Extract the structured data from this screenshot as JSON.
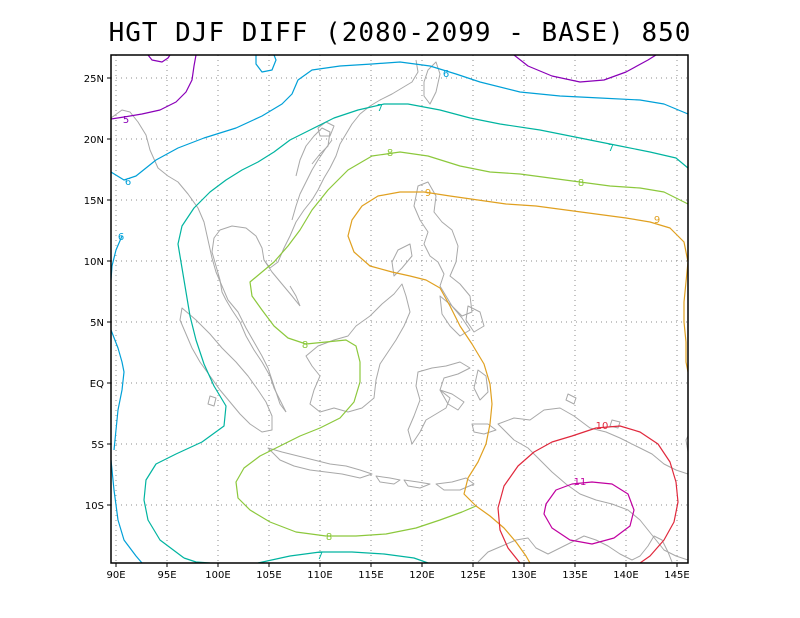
{
  "title": "HGT DJF DIFF (2080-2099 - BASE) 850",
  "axes": {
    "x_ticks": [
      "90E",
      "95E",
      "100E",
      "105E",
      "110E",
      "115E",
      "120E",
      "125E",
      "130E",
      "135E",
      "140E",
      "145E"
    ],
    "y_ticks": [
      "25N",
      "20N",
      "15N",
      "10N",
      "5N",
      "EQ",
      "5S",
      "10S"
    ]
  },
  "contour_labels": [
    {
      "text": "5",
      "color": "#8a00b8"
    },
    {
      "text": "6",
      "color": "#00a0d8"
    },
    {
      "text": "6",
      "color": "#00a0d8"
    },
    {
      "text": "6",
      "color": "#00a0d8"
    },
    {
      "text": "7",
      "color": "#00b4a0"
    },
    {
      "text": "7",
      "color": "#00b4a0"
    },
    {
      "text": "7",
      "color": "#00b4a0"
    },
    {
      "text": "8",
      "color": "#8cc83c"
    },
    {
      "text": "8",
      "color": "#8cc83c"
    },
    {
      "text": "8",
      "color": "#8cc83c"
    },
    {
      "text": "8",
      "color": "#8cc83c"
    },
    {
      "text": "9",
      "color": "#e0a020"
    },
    {
      "text": "9",
      "color": "#e0a020"
    },
    {
      "text": "10",
      "color": "#e0283c"
    },
    {
      "text": "11",
      "color": "#c000a0"
    }
  ],
  "colors": {
    "c5": "#8a00b8",
    "c6": "#00a0d8",
    "c7": "#00b4a0",
    "c8": "#8cc83c",
    "c9": "#e0a020",
    "c10": "#e0283c",
    "c11": "#c000a0",
    "coast": "#a8a8a8",
    "grid": "#8c8c8c"
  }
}
